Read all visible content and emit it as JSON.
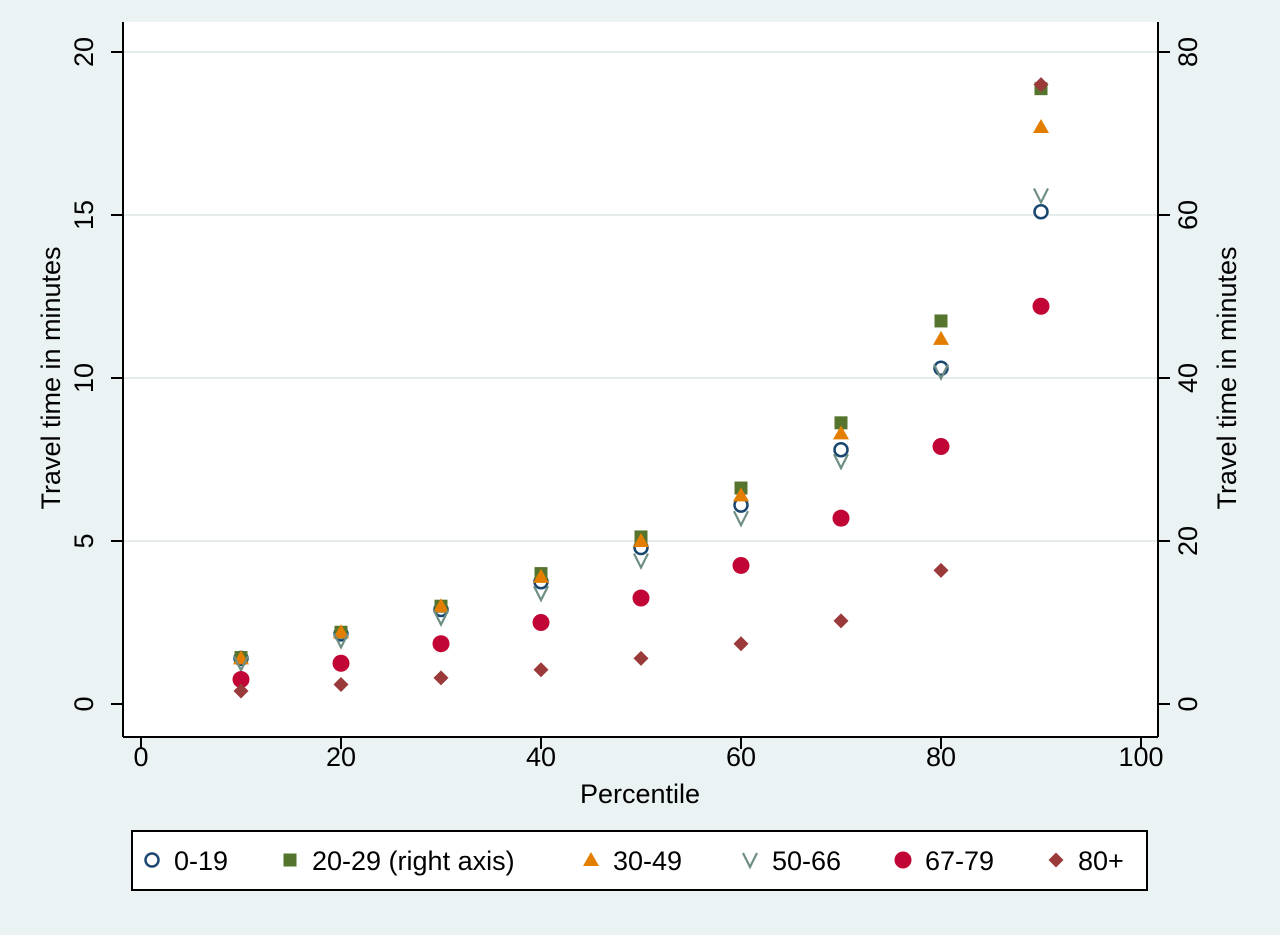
{
  "chart_data": {
    "type": "scatter",
    "xlabel": "Percentile",
    "ylabel_left": "Travel time in minutes",
    "ylabel_right": "Travel time in minutes",
    "xlim": [
      0,
      100
    ],
    "ylim_left": [
      0,
      20
    ],
    "ylim_right": [
      0,
      80
    ],
    "x_ticks": [
      0,
      20,
      40,
      60,
      80,
      100
    ],
    "y_ticks_left": [
      0,
      5,
      10,
      15,
      20
    ],
    "y_ticks_right": [
      0,
      20,
      40,
      60,
      80
    ],
    "grid": true,
    "legend_position": "bottom",
    "x": [
      10,
      20,
      30,
      40,
      50,
      60,
      70,
      80,
      90
    ],
    "series": [
      {
        "name": "0-19",
        "axis": "left",
        "marker": "hollow-circle",
        "color": "#1a476f",
        "values": [
          1.4,
          2.15,
          2.9,
          3.75,
          4.8,
          6.1,
          7.8,
          10.3,
          15.1
        ]
      },
      {
        "name": "20-29 (right axis)",
        "axis": "right",
        "marker": "square",
        "color": "#55752f",
        "values": [
          5.7,
          8.8,
          12.0,
          16.0,
          20.5,
          26.5,
          34.5,
          47.0,
          75.5
        ]
      },
      {
        "name": "30-49",
        "axis": "left",
        "marker": "triangle",
        "color": "#e37e00",
        "values": [
          1.4,
          2.2,
          3.0,
          3.9,
          5.0,
          6.4,
          8.3,
          11.2,
          17.7
        ]
      },
      {
        "name": "50-66",
        "axis": "left",
        "marker": "hollow-triangle-down",
        "color": "#6e8e84",
        "values": [
          1.25,
          1.95,
          2.65,
          3.4,
          4.4,
          5.7,
          7.45,
          10.2,
          15.6
        ]
      },
      {
        "name": "67-79",
        "axis": "left",
        "marker": "circle",
        "color": "#c10534",
        "values": [
          0.75,
          1.25,
          1.85,
          2.5,
          3.25,
          4.25,
          5.7,
          7.9,
          12.2
        ]
      },
      {
        "name": "80+",
        "axis": "left",
        "marker": "diamond",
        "color": "#9a3a3a",
        "values": [
          0.4,
          0.6,
          0.8,
          1.05,
          1.4,
          1.85,
          2.55,
          4.1,
          19.0
        ]
      }
    ]
  }
}
